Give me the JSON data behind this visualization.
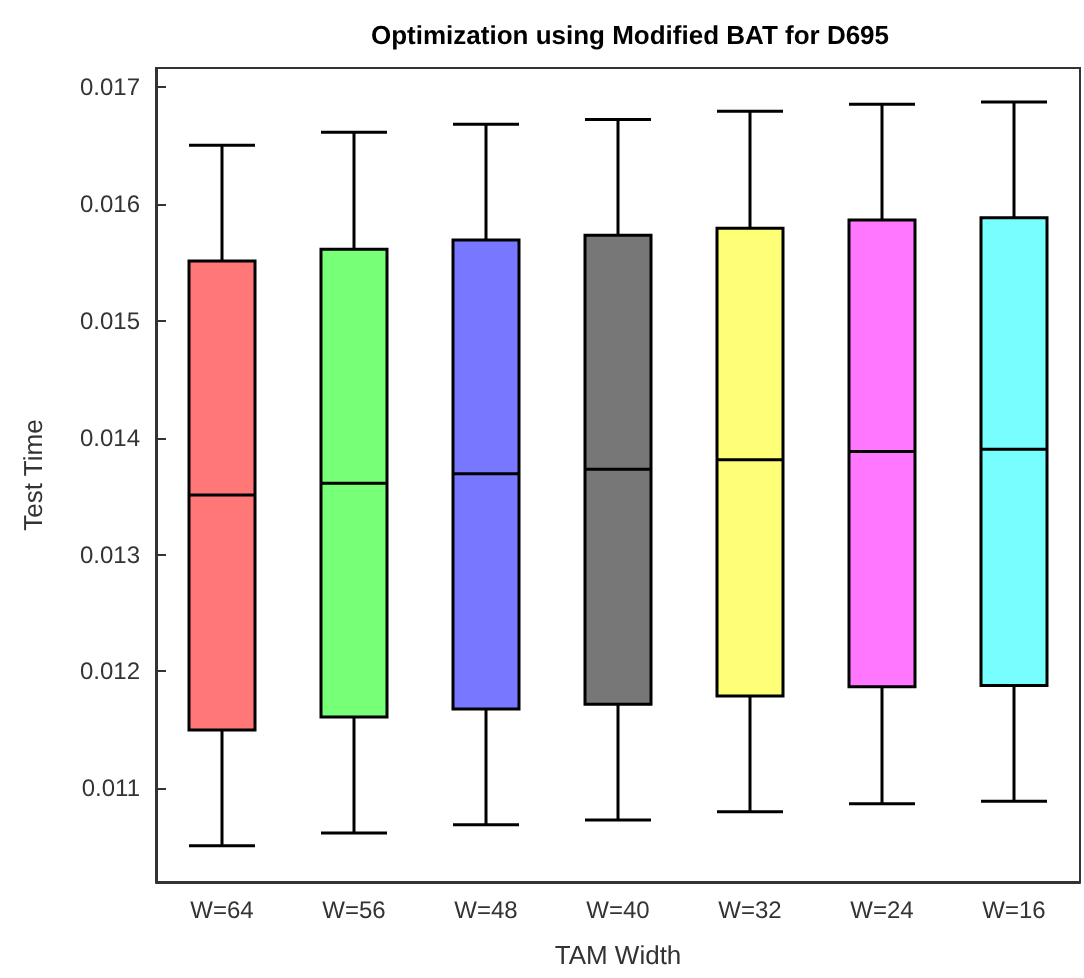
{
  "chart_data": {
    "type": "box",
    "title": "Optimization using Modified BAT for D695",
    "xlabel": "TAM Width",
    "ylabel": "Test Time",
    "categories": [
      "W=64",
      "W=56",
      "W=48",
      "W=40",
      "W=32",
      "W=24",
      "W=16"
    ],
    "boxes": [
      {
        "low": 0.01051,
        "q1": 0.0115,
        "median": 0.01351,
        "q3": 0.01551,
        "high": 0.0165
      },
      {
        "low": 0.01062,
        "q1": 0.01161,
        "median": 0.01361,
        "q3": 0.01561,
        "high": 0.01661
      },
      {
        "low": 0.01069,
        "q1": 0.01168,
        "median": 0.01369,
        "q3": 0.01569,
        "high": 0.01668
      },
      {
        "low": 0.01073,
        "q1": 0.01172,
        "median": 0.01373,
        "q3": 0.01573,
        "high": 0.01672
      },
      {
        "low": 0.0108,
        "q1": 0.01179,
        "median": 0.01381,
        "q3": 0.01579,
        "high": 0.01679
      },
      {
        "low": 0.01087,
        "q1": 0.01187,
        "median": 0.01388,
        "q3": 0.01586,
        "high": 0.01685
      },
      {
        "low": 0.01089,
        "q1": 0.01188,
        "median": 0.0139,
        "q3": 0.01588,
        "high": 0.01687
      }
    ],
    "colors": [
      "#ff7777",
      "#77ff77",
      "#7777ff",
      "#777777",
      "#ffff77",
      "#ff77ff",
      "#77ffff"
    ],
    "ylim": [
      0.0102,
      0.01716
    ],
    "yticks": [
      0.011,
      0.012,
      0.013,
      0.014,
      0.015,
      0.016,
      0.017
    ],
    "grid": false
  }
}
